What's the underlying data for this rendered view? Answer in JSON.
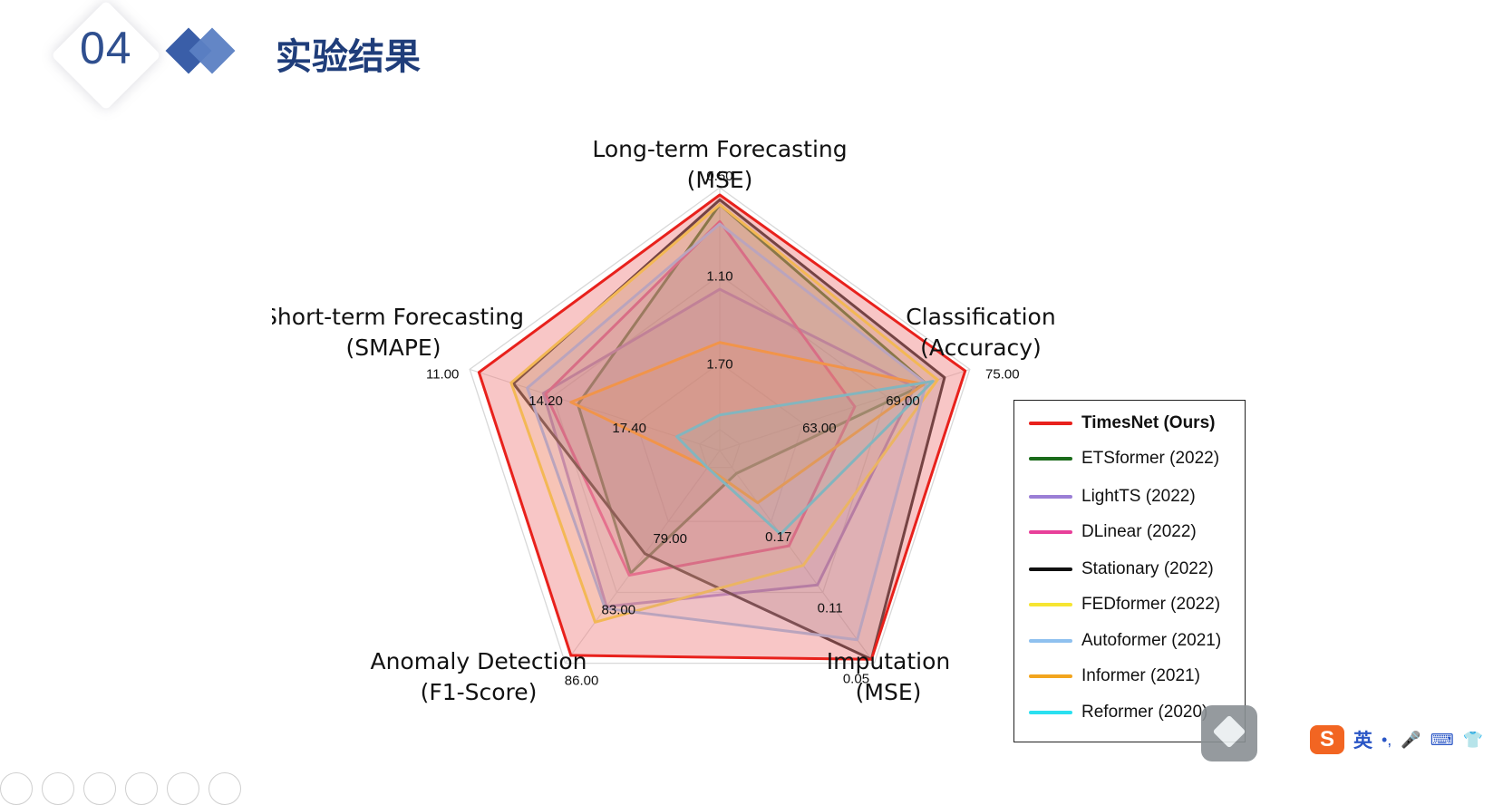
{
  "slide": {
    "number": "04",
    "title": "实验结果"
  },
  "chart_data": {
    "type": "radar",
    "axes": [
      {
        "label": [
          "Long-term Forecasting",
          "(MSE)"
        ],
        "ticks": [
          "0.50",
          "1.10",
          "1.70"
        ]
      },
      {
        "label": [
          "Classification",
          "(Accuracy)"
        ],
        "ticks": [
          "75.00",
          "69.00",
          "63.00"
        ]
      },
      {
        "label": [
          "Imputation",
          "(MSE)"
        ],
        "ticks": [
          "0.05",
          "0.11",
          "0.17"
        ]
      },
      {
        "label": [
          "Anomaly Detection",
          "(F1-Score)"
        ],
        "ticks": [
          "86.00",
          "83.00",
          "79.00"
        ]
      },
      {
        "label": [
          "Short-term Forecasting",
          "(SMAPE)"
        ],
        "ticks": [
          "11.00",
          "14.20",
          "17.40"
        ]
      }
    ],
    "scale": "each axis normalized: outer ring = best tick, center = worst",
    "series": [
      {
        "name": "TimesNet (Ours)",
        "color": "#e8211c",
        "fill": "#f08080",
        "values": [
          0.97,
          0.98,
          0.98,
          0.96,
          0.96
        ]
      },
      {
        "name": "ETSformer (2022)",
        "color": "#1a6b1a",
        "values": [
          0.93,
          0.81,
          0.03,
          0.54,
          0.53
        ]
      },
      {
        "name": "LightTS (2022)",
        "color": "#9b7fd6",
        "values": [
          0.58,
          0.76,
          0.6,
          0.71,
          0.68
        ]
      },
      {
        "name": "DLinear (2022)",
        "color": "#e8409a",
        "values": [
          0.86,
          0.5,
          0.4,
          0.55,
          0.67
        ]
      },
      {
        "name": "Stationary (2022)",
        "color": "#111111",
        "values": [
          0.95,
          0.89,
          0.98,
          0.44,
          0.81
        ]
      },
      {
        "name": "FEDformer (2022)",
        "color": "#f6e532",
        "values": [
          0.93,
          0.86,
          0.5,
          0.79,
          0.82
        ]
      },
      {
        "name": "Autoformer (2021)",
        "color": "#8fc1ef",
        "values": [
          0.85,
          0.81,
          0.88,
          0.72,
          0.75
        ]
      },
      {
        "name": "Informer (2021)",
        "color": "#f2a51e",
        "values": [
          0.36,
          0.8,
          0.18,
          0.0,
          0.56
        ]
      },
      {
        "name": "Reformer (2020)",
        "color": "#2be0f0",
        "values": [
          0.06,
          0.84,
          0.34,
          0.0,
          0.1
        ]
      }
    ]
  },
  "ime": {
    "lang_label": "英",
    "punct": "•,",
    "mic": "🎤",
    "kbd": "⌨",
    "shirt": "👕"
  }
}
